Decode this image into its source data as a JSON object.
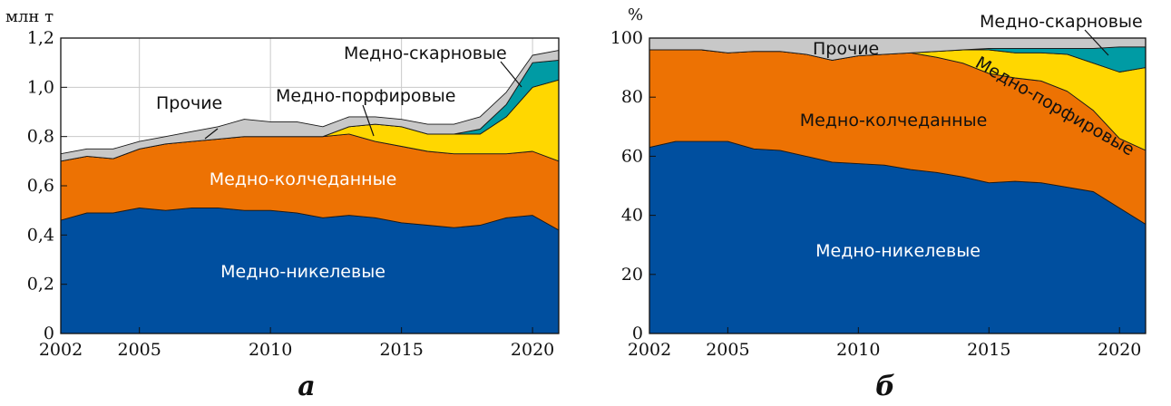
{
  "chart_data": [
    {
      "panel": "а",
      "type": "area",
      "stacked": true,
      "ylabel": "млн т",
      "ylim": [
        0,
        1.2
      ],
      "yticks": [
        "0",
        "0,2",
        "0,4",
        "0,6",
        "0,8",
        "1,0",
        "1,2"
      ],
      "xlim": [
        2002,
        2021
      ],
      "xticks": [
        "2002",
        "2005",
        "2010",
        "2015",
        "2020"
      ],
      "grid": true,
      "x": [
        2002,
        2003,
        2004,
        2005,
        2006,
        2007,
        2008,
        2009,
        2010,
        2011,
        2012,
        2013,
        2014,
        2015,
        2016,
        2017,
        2018,
        2019,
        2020,
        2021
      ],
      "series": [
        {
          "name": "Медно-никелевые",
          "color": "#004f9f",
          "values": [
            0.46,
            0.49,
            0.49,
            0.51,
            0.5,
            0.51,
            0.51,
            0.5,
            0.5,
            0.49,
            0.47,
            0.48,
            0.47,
            0.45,
            0.44,
            0.43,
            0.44,
            0.47,
            0.48,
            0.42
          ]
        },
        {
          "name": "Медно-колчеданные",
          "color": "#ed7203",
          "values": [
            0.24,
            0.23,
            0.22,
            0.24,
            0.27,
            0.27,
            0.28,
            0.3,
            0.3,
            0.31,
            0.33,
            0.33,
            0.31,
            0.31,
            0.3,
            0.3,
            0.29,
            0.26,
            0.26,
            0.28
          ]
        },
        {
          "name": "Медно-порфировые",
          "color": "#ffd700",
          "values": [
            0,
            0,
            0,
            0,
            0,
            0,
            0,
            0,
            0,
            0,
            0,
            0.03,
            0.07,
            0.08,
            0.07,
            0.08,
            0.08,
            0.15,
            0.26,
            0.33
          ]
        },
        {
          "name": "Медно-скарновые",
          "color": "#009ba4",
          "values": [
            0,
            0,
            0,
            0,
            0,
            0,
            0,
            0,
            0,
            0,
            0,
            0,
            0,
            0,
            0,
            0,
            0.02,
            0.05,
            0.1,
            0.08
          ]
        },
        {
          "name": "Прочие",
          "color": "#c8c8c8",
          "values": [
            0.03,
            0.03,
            0.04,
            0.03,
            0.03,
            0.04,
            0.05,
            0.07,
            0.06,
            0.06,
            0.04,
            0.04,
            0.03,
            0.03,
            0.04,
            0.04,
            0.05,
            0.05,
            0.03,
            0.04
          ]
        }
      ],
      "labels": {
        "ni": "Медно-никелевые",
        "vms": "Медно-колчеданные",
        "por": "Медно-порфировые",
        "skarn": "Медно-скарновые",
        "other": "Прочие"
      }
    },
    {
      "panel": "б",
      "type": "area",
      "stacked": true,
      "ylabel": "%",
      "ylim": [
        0,
        100
      ],
      "yticks": [
        "0",
        "20",
        "40",
        "60",
        "80",
        "100"
      ],
      "xlim": [
        2002,
        2021
      ],
      "xticks": [
        "2002",
        "2005",
        "2010",
        "2015",
        "2020"
      ],
      "grid": false,
      "x": [
        2002,
        2003,
        2004,
        2005,
        2006,
        2007,
        2008,
        2009,
        2010,
        2011,
        2012,
        2013,
        2014,
        2015,
        2016,
        2017,
        2018,
        2019,
        2020,
        2021
      ],
      "series": [
        {
          "name": "Медно-никелевые",
          "color": "#004f9f",
          "values": [
            63,
            65,
            65,
            65,
            62.5,
            62,
            60,
            58,
            57.5,
            57,
            55.5,
            54.5,
            53,
            51,
            51.5,
            51,
            49.5,
            48,
            42.5,
            37
          ]
        },
        {
          "name": "Медно-колчеданные",
          "color": "#ed7203",
          "values": [
            33,
            31,
            31,
            30,
            33,
            33.5,
            34.5,
            34.5,
            36.5,
            37.5,
            39.5,
            39,
            38.5,
            37,
            35,
            34.5,
            32.5,
            27.5,
            23.5,
            25
          ]
        },
        {
          "name": "Медно-порфировые",
          "color": "#ffd700",
          "values": [
            0,
            0,
            0,
            0,
            0,
            0,
            0,
            0,
            0,
            0,
            0,
            2,
            4.5,
            8,
            8.5,
            9.5,
            12.5,
            16,
            22.5,
            28
          ]
        },
        {
          "name": "Медно-скарновые",
          "color": "#009ba4",
          "values": [
            0,
            0,
            0,
            0,
            0,
            0,
            0,
            0,
            0,
            0,
            0,
            0,
            0,
            0.5,
            1.5,
            1.5,
            2,
            5,
            8.5,
            7
          ]
        },
        {
          "name": "Прочие",
          "color": "#c8c8c8",
          "values": [
            4,
            4,
            4,
            5,
            4.5,
            4.5,
            5.5,
            7.5,
            6,
            5.5,
            5,
            4.5,
            4,
            3.5,
            3.5,
            3.5,
            3.5,
            3.5,
            3,
            3
          ]
        }
      ],
      "labels": {
        "ni": "Медно-никелевые",
        "vms": "Медно-колчеданные",
        "por": "Медно-порфировые",
        "skarn": "Медно-скарновые",
        "other": "Прочие"
      }
    }
  ]
}
